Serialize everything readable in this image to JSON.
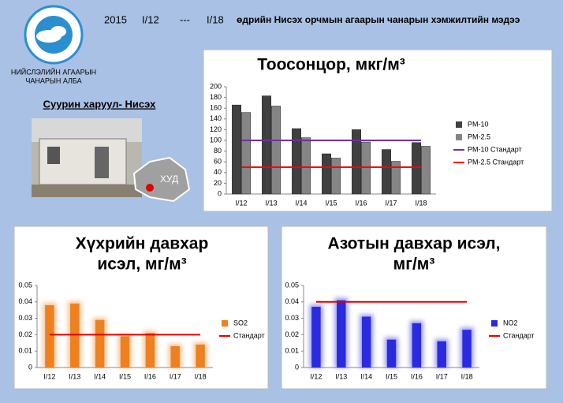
{
  "header": {
    "period_year": "2015",
    "period_from": "I/12",
    "period_sep": "---",
    "period_to": "I/18",
    "title": "өдрийн Нисэх орчмын агаарын чанарын хэмжилтийн мэдээ",
    "org": [
      "НИЙСЛЭЛИЙН АГААРЫН",
      "ЧАНАРЫН АЛБА"
    ],
    "station": "Суурин харуул- Нисэх",
    "district": "ХУД"
  },
  "chart_data": [
    {
      "type": "bar",
      "title": [
        "Тоосонцор, мкг/м³"
      ],
      "categories": [
        "I/12",
        "I/13",
        "I/14",
        "I/15",
        "I/16",
        "I/17",
        "I/18"
      ],
      "series": [
        {
          "name": "PM-10",
          "color": "#404040",
          "values": [
            166,
            183,
            122,
            75,
            120,
            83,
            96
          ]
        },
        {
          "name": "PM-2.5",
          "color": "#858585",
          "values": [
            152,
            164,
            105,
            67,
            97,
            61,
            89
          ]
        },
        {
          "name": "PM-10 Стандарт",
          "color": "#7030a0",
          "type": "line",
          "values": [
            100,
            100,
            100,
            100,
            100,
            100,
            100
          ]
        },
        {
          "name": "PM-2.5 Стандарт",
          "color": "#ff0000",
          "type": "line",
          "values": [
            50,
            50,
            50,
            50,
            50,
            50,
            50
          ]
        }
      ],
      "ylim": [
        0,
        200
      ],
      "yticks": [
        0,
        20,
        40,
        60,
        80,
        100,
        120,
        140,
        160,
        180,
        200
      ]
    },
    {
      "type": "bar",
      "title": [
        "Хүхрийн давхар",
        "исэл, мг/м³"
      ],
      "categories": [
        "I/12",
        "I/13",
        "I/14",
        "I/15",
        "I/16",
        "I/17",
        "I/18"
      ],
      "series": [
        {
          "name": "SO2",
          "color": "#ee8020",
          "values": [
            0.038,
            0.039,
            0.029,
            0.019,
            0.021,
            0.013,
            0.014
          ]
        },
        {
          "name": "Стандарт",
          "color": "#e00000",
          "type": "line",
          "values": [
            0.02,
            0.02,
            0.02,
            0.02,
            0.02,
            0.02,
            0.02
          ]
        }
      ],
      "ylim": [
        0,
        0.05
      ],
      "yticks": [
        0,
        0.01,
        0.02,
        0.03,
        0.04,
        0.05
      ]
    },
    {
      "type": "bar",
      "title": [
        "Азотын давхар исэл,",
        "мг/м³"
      ],
      "categories": [
        "I/12",
        "I/13",
        "I/14",
        "I/15",
        "I/16",
        "I/17",
        "I/18"
      ],
      "series": [
        {
          "name": "NO2",
          "color": "#2a2ae0",
          "values": [
            0.037,
            0.041,
            0.031,
            0.017,
            0.027,
            0.016,
            0.023
          ]
        },
        {
          "name": "Стандарт",
          "color": "#e00000",
          "type": "line",
          "values": [
            0.04,
            0.04,
            0.04,
            0.04,
            0.04,
            0.04,
            0.04
          ]
        }
      ],
      "ylim": [
        0,
        0.05
      ],
      "yticks": [
        0,
        0.01,
        0.02,
        0.03,
        0.04,
        0.05
      ]
    }
  ]
}
